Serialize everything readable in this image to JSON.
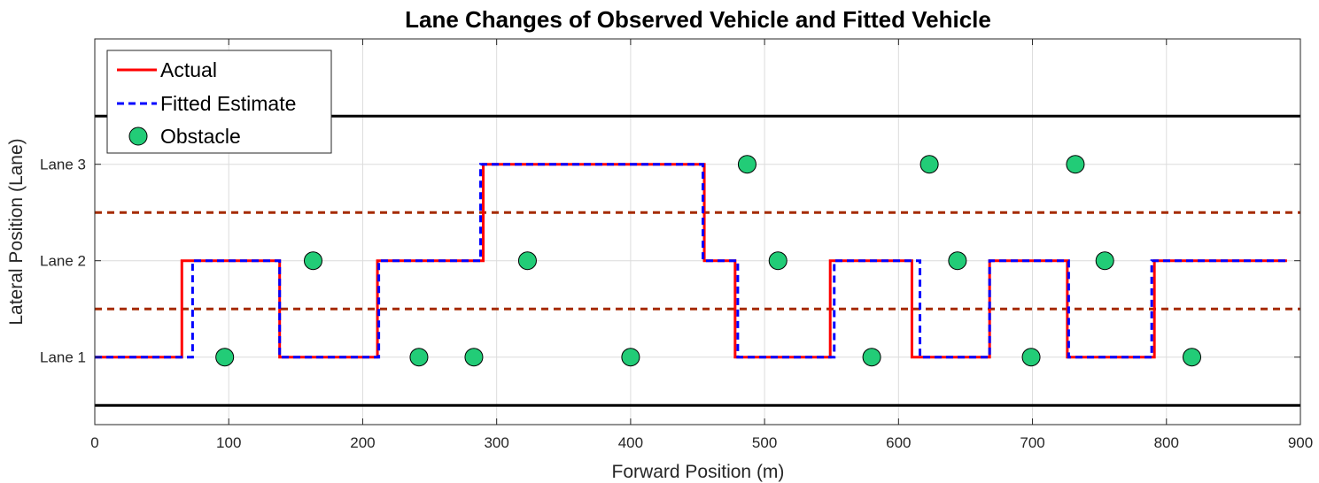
{
  "chart_data": {
    "type": "line",
    "title": "Lane Changes of Observed Vehicle and Fitted Vehicle",
    "xlabel": "Forward Position (m)",
    "ylabel": "Lateral Position (Lane)",
    "xlim": [
      0,
      900
    ],
    "ylim": [
      0.3,
      4.3
    ],
    "x_ticks": [
      0,
      100,
      200,
      300,
      400,
      500,
      600,
      700,
      800,
      900
    ],
    "y_ticks": [
      {
        "value": 1,
        "label": "Lane 1"
      },
      {
        "value": 2,
        "label": "Lane 2"
      },
      {
        "value": 3,
        "label": "Lane 3"
      }
    ],
    "grid": true,
    "legend_position": "top-left",
    "series": [
      {
        "name": "Actual",
        "kind": "line",
        "color": "#ff0000",
        "style": "solid",
        "x": [
          0,
          65,
          65,
          138,
          138,
          211,
          211,
          290,
          290,
          455,
          455,
          478,
          478,
          549,
          549,
          610,
          610,
          668,
          668,
          726,
          726,
          791,
          791,
          890
        ],
        "y": [
          1,
          1,
          2,
          2,
          1,
          1,
          2,
          2,
          3,
          3,
          2,
          2,
          1,
          1,
          2,
          2,
          1,
          1,
          2,
          2,
          1,
          1,
          2,
          2
        ]
      },
      {
        "name": "Fitted Estimate",
        "kind": "line",
        "color": "#0000ff",
        "style": "dashed",
        "x": [
          0,
          73,
          73,
          138,
          138,
          212,
          212,
          288,
          288,
          454,
          454,
          480,
          480,
          552,
          552,
          616,
          616,
          668,
          668,
          727,
          727,
          789,
          789,
          890
        ],
        "y": [
          1,
          1,
          2,
          2,
          1,
          1,
          2,
          2,
          3,
          3,
          2,
          2,
          1,
          1,
          2,
          2,
          1,
          1,
          2,
          2,
          1,
          1,
          2,
          2
        ]
      },
      {
        "name": "Obstacle",
        "kind": "scatter",
        "color": "#22cc77",
        "x": [
          97,
          163,
          242,
          283,
          323,
          400,
          487,
          510,
          580,
          623,
          644,
          699,
          732,
          754,
          819
        ],
        "y": [
          1,
          2,
          1,
          1,
          2,
          1,
          3,
          2,
          1,
          3,
          2,
          1,
          3,
          2,
          1
        ]
      }
    ],
    "lane_boundaries": [
      {
        "y": 0.5,
        "style": "solid",
        "color": "#000000"
      },
      {
        "y": 3.5,
        "style": "solid",
        "color": "#000000"
      },
      {
        "y": 1.5,
        "style": "dashed",
        "color": "#a52a00"
      },
      {
        "y": 2.5,
        "style": "dashed",
        "color": "#a52a00"
      }
    ]
  }
}
